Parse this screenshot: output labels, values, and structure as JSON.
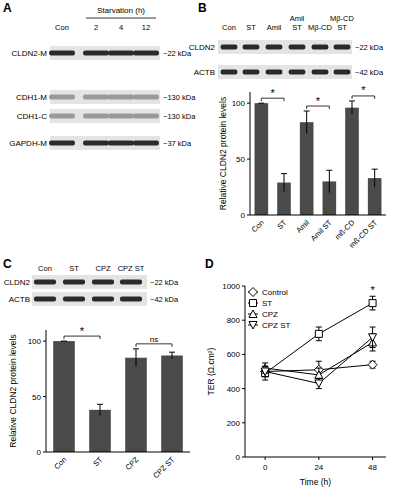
{
  "panel_labels": [
    "A",
    "B",
    "C",
    "D"
  ],
  "blots": [
    {
      "header": "Starvation (h)",
      "lanes": [
        "Con",
        "2",
        "4",
        "12"
      ],
      "rows": [
        {
          "label": "CLDN2-M",
          "size": "~22 kDa"
        },
        {
          "label": "CDH1-M",
          "size": "~130 kDa"
        },
        {
          "label": "CDH1-C",
          "size": "~130 kDa"
        },
        {
          "label": "GAPDH-M",
          "size": "~37 kDa"
        }
      ]
    },
    {
      "lanes": [
        "Con",
        "ST",
        "Amil",
        "Amil ST",
        "Mβ-CD",
        "Mβ-CD ST"
      ],
      "rows": [
        {
          "label": "CLDN2",
          "size": "~22 kDa"
        },
        {
          "label": "ACTB",
          "size": "~42 kDa"
        }
      ]
    },
    {
      "lanes": [
        "Con",
        "ST",
        "CPZ",
        "CPZ ST"
      ],
      "rows": [
        {
          "label": "CLDN2",
          "size": "~22 kDa"
        },
        {
          "label": "ACTB",
          "size": "~42 kDa"
        }
      ]
    }
  ],
  "chart_data": [
    {
      "type": "bar",
      "y_label": "Relative CLDN2 protein levels",
      "categories": [
        "Con",
        "ST",
        "Amil",
        "Amil ST",
        "mß-CD",
        "mß-CD ST"
      ],
      "values": [
        100,
        29,
        83,
        30,
        96,
        33
      ],
      "errors": [
        0,
        8,
        10,
        10,
        6,
        8
      ],
      "color": "#4a4a4a",
      "ylim": [
        0,
        110
      ],
      "yticks": [
        0,
        50,
        100
      ],
      "annotations": [
        {
          "label": "*",
          "categories": [
            "Con",
            "ST"
          ]
        },
        {
          "label": "*",
          "categories": [
            "Amil",
            "Amil ST"
          ]
        },
        {
          "label": "*",
          "categories": [
            "mß-CD",
            "mß-CD ST"
          ]
        }
      ]
    },
    {
      "type": "bar",
      "y_label": "Relative CLDN2 protein levels",
      "categories": [
        "Con",
        "ST",
        "CPZ",
        "CPZ ST"
      ],
      "values": [
        100,
        38,
        85,
        87
      ],
      "errors": [
        0,
        5,
        8,
        3
      ],
      "color": "#4a4a4a",
      "ylim": [
        0,
        110
      ],
      "yticks": [
        0,
        50,
        100
      ],
      "annotations": [
        {
          "label": "*",
          "categories": [
            "Con",
            "ST"
          ]
        },
        {
          "label": "ns",
          "categories": [
            "CPZ",
            "CPZ ST"
          ]
        }
      ]
    },
    {
      "type": "line",
      "y_label": "TER (Ω.cm²)",
      "x_label": "Time (h)",
      "x": [
        0,
        24,
        48
      ],
      "series": [
        {
          "name": "Control",
          "marker": "diamond",
          "values": [
            500,
            510,
            540
          ],
          "errors": [
            30,
            50,
            20
          ]
        },
        {
          "name": "ST",
          "marker": "square",
          "values": [
            490,
            720,
            900
          ],
          "errors": [
            40,
            40,
            40
          ]
        },
        {
          "name": "CPZ",
          "marker": "triangle",
          "values": [
            520,
            480,
            670
          ],
          "errors": [
            30,
            40,
            50
          ]
        },
        {
          "name": "CPZ ST",
          "marker": "triangle_down",
          "values": [
            500,
            430,
            700
          ],
          "errors": [
            30,
            30,
            60
          ]
        }
      ],
      "xlim": [
        -9,
        54
      ],
      "ylim": [
        0,
        1000
      ],
      "xticks": [
        0,
        24,
        48
      ],
      "yticks": [
        0,
        200,
        400,
        600,
        800,
        1000
      ],
      "legend": "upper left",
      "color": "#000000",
      "annotations": [
        {
          "label": "*",
          "x": 48,
          "series": "ST"
        }
      ]
    }
  ]
}
